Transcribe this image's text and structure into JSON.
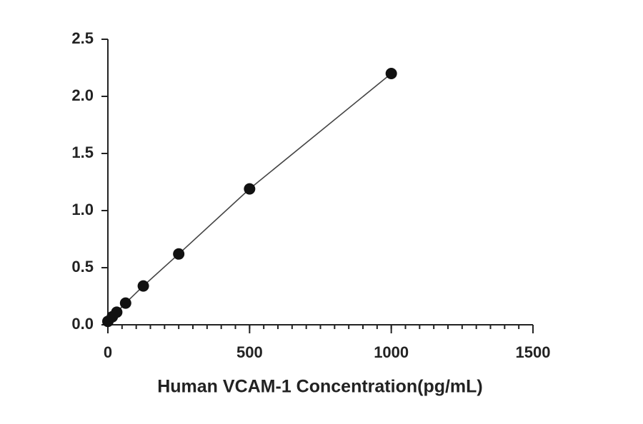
{
  "chart_data": {
    "type": "scatter",
    "x_label": "Human VCAM-1 Concentration(pg/mL)",
    "x": [
      0,
      15.6,
      31.25,
      62.5,
      125,
      250,
      500,
      1000
    ],
    "series": [
      {
        "values": [
          0.03,
          0.07,
          0.11,
          0.19,
          0.34,
          0.62,
          1.19,
          2.2
        ],
        "color": "#111111"
      }
    ],
    "line": true,
    "xlim": [
      0,
      1500
    ],
    "xticks": [
      0,
      500,
      1000,
      1500
    ],
    "x_minor_tick_interval": 50,
    "ylim": [
      0,
      2.5
    ],
    "yticks": [
      {
        "value": 0,
        "label": "0.0"
      },
      {
        "value": 0.5,
        "label": "0.5"
      },
      {
        "value": 1,
        "label": "1.0"
      },
      {
        "value": 1.5,
        "label": "1.5"
      },
      {
        "value": 2,
        "label": "2.0"
      },
      {
        "value": 2.5,
        "label": "2.5"
      }
    ],
    "grid": false
  }
}
